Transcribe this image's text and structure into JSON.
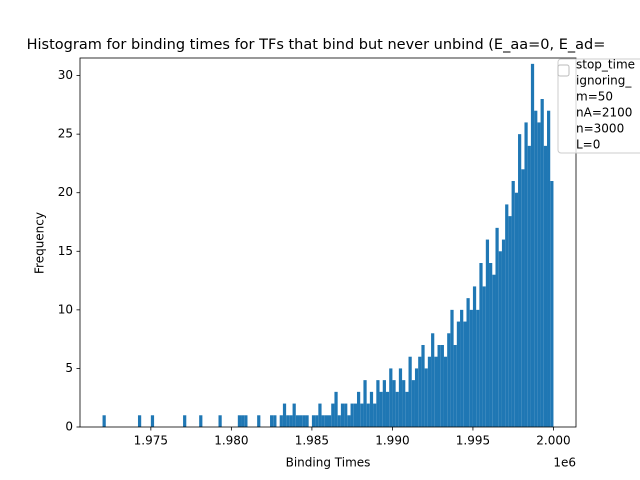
{
  "chart_data": {
    "type": "histogram",
    "title": "Histogram for binding times for TFs that bind but never unbind (E_aa=0, E_ad=",
    "x_label": "Binding Times",
    "y_label": "Frequency",
    "x_offset_label": "1e6",
    "color": "#1f77b4",
    "legend_lines": [
      "stop_time",
      "ignoring_",
      "m=50",
      "nA=2100",
      "n=3000",
      "L=0"
    ],
    "bins": [
      1972000,
      1972200,
      1972400,
      1972600,
      1972800,
      1973000,
      1973200,
      1973400,
      1973600,
      1973800,
      1974000,
      1974200,
      1974400,
      1974600,
      1974800,
      1975000,
      1975200,
      1975400,
      1975600,
      1975800,
      1976000,
      1976200,
      1976400,
      1976600,
      1976800,
      1977000,
      1977200,
      1977400,
      1977600,
      1977800,
      1978000,
      1978200,
      1978400,
      1978600,
      1978800,
      1979000,
      1979200,
      1979400,
      1979600,
      1979800,
      1980000,
      1980200,
      1980400,
      1980600,
      1980800,
      1981000,
      1981200,
      1981400,
      1981600,
      1981800,
      1982000,
      1982200,
      1982400,
      1982600,
      1982800,
      1983000,
      1983200,
      1983400,
      1983600,
      1983800,
      1984000,
      1984200,
      1984400,
      1984600,
      1984800,
      1985000,
      1985200,
      1985400,
      1985600,
      1985800,
      1986000,
      1986200,
      1986400,
      1986600,
      1986800,
      1987000,
      1987200,
      1987400,
      1987600,
      1987800,
      1988000,
      1988200,
      1988400,
      1988600,
      1988800,
      1989000,
      1989200,
      1989400,
      1989600,
      1989800,
      1990000,
      1990200,
      1990400,
      1990600,
      1990800,
      1991000,
      1991200,
      1991400,
      1991600,
      1991800,
      1992000,
      1992200,
      1992400,
      1992600,
      1992800,
      1993000,
      1993200,
      1993400,
      1993600,
      1993800,
      1994000,
      1994200,
      1994400,
      1994600,
      1994800,
      1995000,
      1995200,
      1995400,
      1995600,
      1995800,
      1996000,
      1996200,
      1996400,
      1996600,
      1996800,
      1997000,
      1997200,
      1997400,
      1997600,
      1997800,
      1998000,
      1998200,
      1998400,
      1998600,
      1998800,
      1999000,
      1999200,
      1999400,
      1999600,
      1999800,
      2000000
    ],
    "counts": [
      1,
      0,
      0,
      0,
      0,
      0,
      0,
      0,
      0,
      0,
      0,
      1,
      0,
      0,
      0,
      1,
      0,
      0,
      0,
      0,
      0,
      0,
      0,
      0,
      0,
      1,
      0,
      0,
      0,
      0,
      1,
      0,
      0,
      0,
      0,
      0,
      1,
      0,
      0,
      0,
      0,
      0,
      1,
      1,
      1,
      0,
      0,
      0,
      1,
      0,
      0,
      0,
      1,
      1,
      0,
      1,
      2,
      1,
      1,
      2,
      1,
      1,
      1,
      1,
      0,
      1,
      1,
      2,
      1,
      1,
      1,
      2,
      3,
      1,
      2,
      2,
      1,
      2,
      2,
      3,
      2,
      4,
      2,
      3,
      2,
      4,
      3,
      4,
      3,
      5,
      4,
      3,
      5,
      4,
      3,
      6,
      4,
      5,
      6,
      7,
      5,
      6,
      8,
      6,
      7,
      7,
      6,
      8,
      10,
      7,
      9,
      10,
      9,
      11,
      10,
      12,
      10,
      14,
      12,
      16,
      14,
      13,
      17,
      15,
      16,
      19,
      18,
      21,
      20,
      25,
      22,
      26,
      24,
      31,
      27,
      26,
      28,
      24,
      27,
      21
    ],
    "xlim": [
      1970600,
      2001400
    ],
    "xticks": [
      {
        "value": 1975000,
        "label": "1.975"
      },
      {
        "value": 1980000,
        "label": "1.980"
      },
      {
        "value": 1985000,
        "label": "1.985"
      },
      {
        "value": 1990000,
        "label": "1.990"
      },
      {
        "value": 1995000,
        "label": "1.995"
      },
      {
        "value": 2000000,
        "label": "2.000"
      }
    ],
    "ylim": [
      0,
      31.5
    ],
    "yticks": [
      0,
      5,
      10,
      15,
      20,
      25,
      30
    ],
    "grid": false
  }
}
